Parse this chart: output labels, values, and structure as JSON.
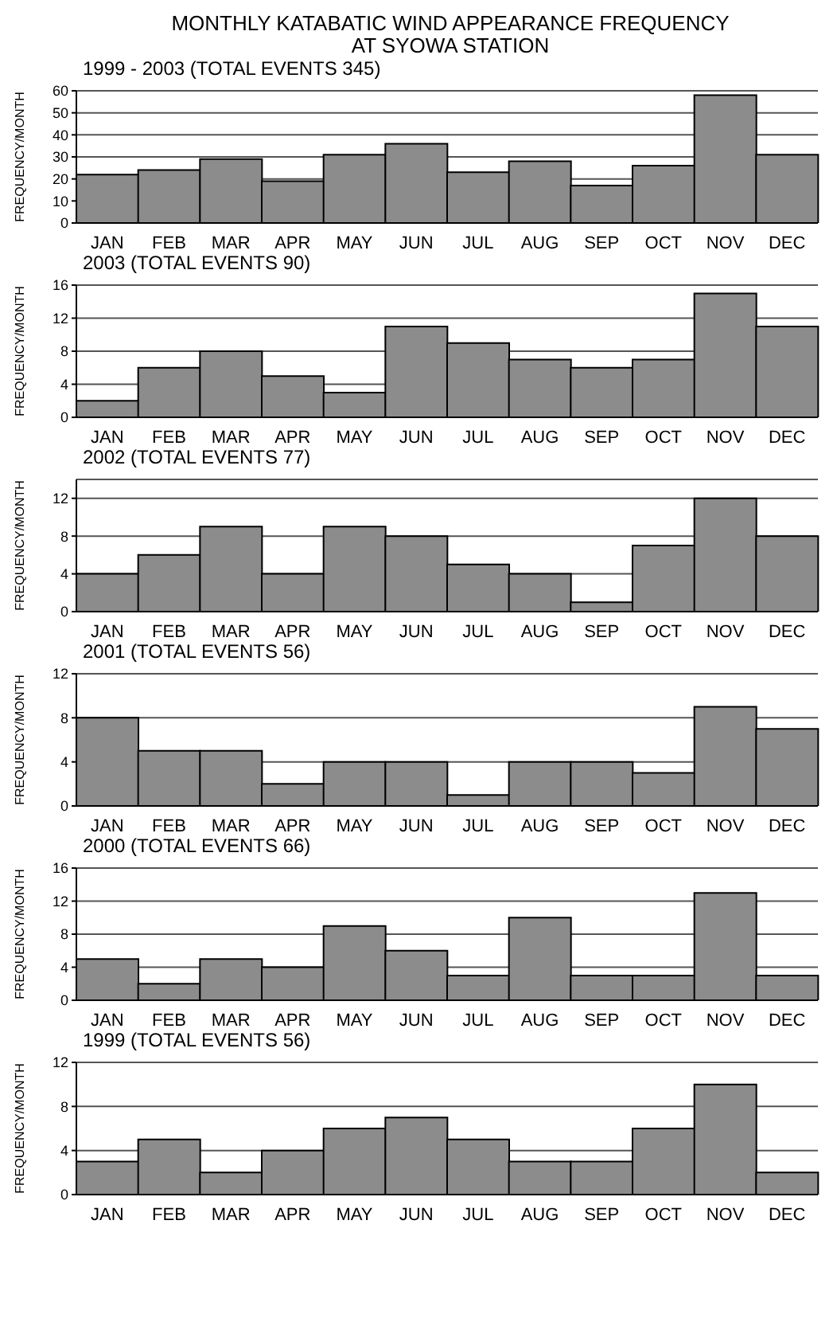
{
  "chart_data": [
    {
      "type": "bar",
      "title": "MONTHLY KATABATIC WIND APPEARANCE FREQUENCY\nAT SYOWA STATION",
      "subtitle": "1999 - 2003 (TOTAL EVENTS 345)",
      "ylabel": "FREQUENCY/MONTH",
      "categories": [
        "JAN",
        "FEB",
        "MAR",
        "APR",
        "MAY",
        "JUN",
        "JUL",
        "AUG",
        "SEP",
        "OCT",
        "NOV",
        "DEC"
      ],
      "values": [
        22,
        24,
        29,
        19,
        31,
        36,
        23,
        28,
        17,
        26,
        58,
        31
      ],
      "color": "#8c8c8c",
      "ylim": [
        0,
        60
      ],
      "yticks": [
        0,
        10,
        20,
        30,
        40,
        50,
        60
      ],
      "grid": "y"
    },
    {
      "type": "bar",
      "subtitle": "2003 (TOTAL EVENTS 90)",
      "ylabel": "FREQUENCY/MONTH",
      "categories": [
        "JAN",
        "FEB",
        "MAR",
        "APR",
        "MAY",
        "JUN",
        "JUL",
        "AUG",
        "SEP",
        "OCT",
        "NOV",
        "DEC"
      ],
      "values": [
        2,
        6,
        8,
        5,
        3,
        11,
        9,
        7,
        6,
        7,
        15,
        11
      ],
      "color": "#8c8c8c",
      "ylim": [
        0,
        16
      ],
      "yticks": [
        0,
        4,
        8,
        12,
        16
      ],
      "grid": "y"
    },
    {
      "type": "bar",
      "subtitle": "2002 (TOTAL EVENTS 77)",
      "ylabel": "FREQUENCY/MONTH",
      "categories": [
        "JAN",
        "FEB",
        "MAR",
        "APR",
        "MAY",
        "JUN",
        "JUL",
        "AUG",
        "SEP",
        "OCT",
        "NOV",
        "DEC"
      ],
      "values": [
        4,
        6,
        9,
        4,
        9,
        8,
        5,
        4,
        1,
        7,
        12,
        8
      ],
      "color": "#8c8c8c",
      "ylim": [
        0,
        14
      ],
      "yticks": [
        0,
        4,
        8,
        12
      ],
      "grid": "y"
    },
    {
      "type": "bar",
      "subtitle": "2001 (TOTAL EVENTS 56)",
      "ylabel": "FREQUENCY/MONTH",
      "categories": [
        "JAN",
        "FEB",
        "MAR",
        "APR",
        "MAY",
        "JUN",
        "JUL",
        "AUG",
        "SEP",
        "OCT",
        "NOV",
        "DEC"
      ],
      "values": [
        8,
        5,
        5,
        2,
        4,
        4,
        1,
        4,
        4,
        3,
        9,
        7
      ],
      "color": "#8c8c8c",
      "ylim": [
        0,
        12
      ],
      "yticks": [
        0,
        4,
        8,
        12
      ],
      "grid": "y"
    },
    {
      "type": "bar",
      "subtitle": "2000 (TOTAL EVENTS 66)",
      "ylabel": "FREQUENCY/MONTH",
      "categories": [
        "JAN",
        "FEB",
        "MAR",
        "APR",
        "MAY",
        "JUN",
        "JUL",
        "AUG",
        "SEP",
        "OCT",
        "NOV",
        "DEC"
      ],
      "values": [
        5,
        2,
        5,
        4,
        9,
        6,
        3,
        10,
        3,
        3,
        13,
        3
      ],
      "color": "#8c8c8c",
      "ylim": [
        0,
        16
      ],
      "yticks": [
        0,
        4,
        8,
        12,
        16
      ],
      "grid": "y"
    },
    {
      "type": "bar",
      "subtitle": "1999 (TOTAL EVENTS 56)",
      "ylabel": "FREQUENCY/MONTH",
      "categories": [
        "JAN",
        "FEB",
        "MAR",
        "APR",
        "MAY",
        "JUN",
        "JUL",
        "AUG",
        "SEP",
        "OCT",
        "NOV",
        "DEC"
      ],
      "values": [
        3,
        5,
        2,
        4,
        6,
        7,
        5,
        3,
        3,
        6,
        10,
        2
      ],
      "color": "#8c8c8c",
      "ylim": [
        0,
        12
      ],
      "yticks": [
        0,
        4,
        8,
        12
      ],
      "grid": "y"
    }
  ]
}
